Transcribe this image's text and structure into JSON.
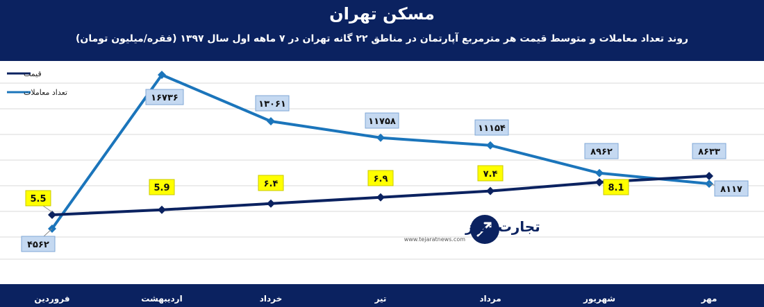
{
  "chart_data": {
    "type": "line",
    "title": "مسکن تهران",
    "subtitle": "روند تعداد معاملات و متوسط قیمت هر مترمربع آپارتمان در مناطق ۲۲ گانه تهران در ۷ ماهه اول سال ۱۳۹۷ (فقره/میلیون تومان)",
    "categories": [
      "فروردین",
      "اردیبهشت",
      "خرداد",
      "تیر",
      "مرداد",
      "شهریور",
      "مهر"
    ],
    "series": [
      {
        "name": "قیمت",
        "color": "#0b2260",
        "values": [
          5.5,
          5.9,
          6.4,
          6.9,
          7.4,
          8.1,
          8.6
        ],
        "labels": [
          "5.5",
          "5.9",
          "۶.۴",
          "۶.۹",
          "۷.۴",
          "8.1",
          "۸۶۳۳"
        ]
      },
      {
        "name": "تعداد معاملات",
        "color": "#1b75bb",
        "values": [
          4562,
          16736,
          13061,
          11758,
          11154,
          8962,
          8117
        ],
        "labels": [
          "۴۵۶۲",
          "۱۶۷۳۶",
          "۱۳۰۶۱",
          "۱۱۷۵۸",
          "۱۱۱۵۴",
          "۸۹۶۲",
          "۸۱۱۷"
        ]
      }
    ],
    "legend": "top-left",
    "grid": true
  },
  "watermark": {
    "brand": "تجارت نیوز",
    "url": "www.tejaratnews.com"
  }
}
